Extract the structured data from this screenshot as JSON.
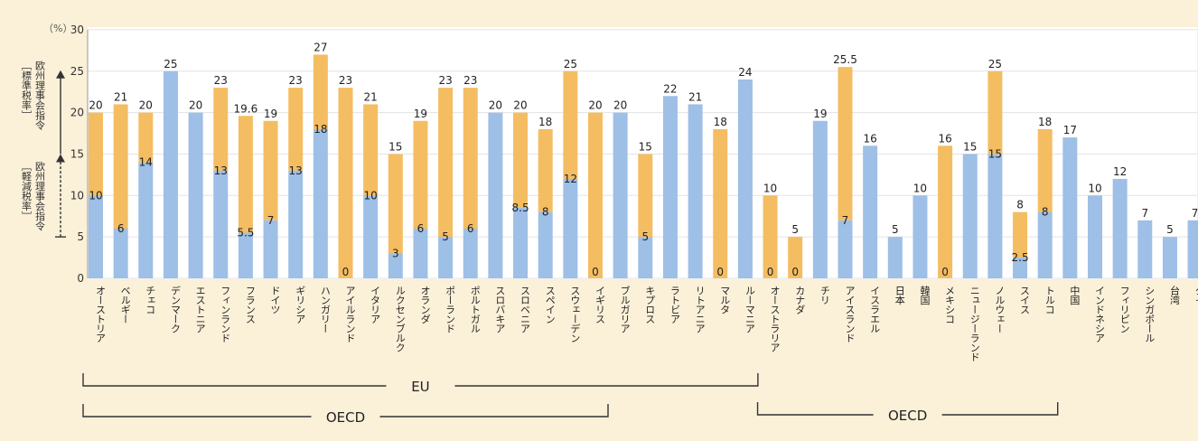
{
  "chart_data": {
    "type": "bar",
    "ylabel": "（%）",
    "ylim": [
      0,
      30
    ],
    "yticks": [
      0,
      5,
      10,
      15,
      20,
      25,
      30
    ],
    "grid": true,
    "colors": {
      "reduced": "#9ebfe6",
      "standard": "#f4bd62",
      "panel": "#ffffff",
      "background": "#fbf0d8"
    },
    "annotations": {
      "standard_rate": "欧州理事会指令",
      "standard_rate_label": "［標準税率］",
      "reduced_rate": "欧州理事会指令",
      "reduced_rate_label": "［軽減税率］"
    },
    "groups": [
      {
        "label": "EU",
        "from": "オーストリア",
        "to": "ルーマニア"
      },
      {
        "label": "OECD",
        "from": "オーストリア",
        "to": "イギリス"
      },
      {
        "label": "OECD",
        "from": "オーストラリア",
        "to": "トルコ"
      }
    ],
    "series": [
      {
        "key": "reduced"
      },
      {
        "key": "standard"
      }
    ],
    "countries": [
      {
        "name": "オーストリア",
        "standard": 20,
        "reduced": 10
      },
      {
        "name": "ベルギー",
        "standard": 21,
        "reduced": 6
      },
      {
        "name": "チェコ",
        "standard": 20,
        "reduced": 14
      },
      {
        "name": "デンマーク",
        "standard": 25,
        "reduced": null
      },
      {
        "name": "エストニア",
        "standard": 20,
        "reduced": null
      },
      {
        "name": "フィンランド",
        "standard": 23,
        "reduced": 13
      },
      {
        "name": "フランス",
        "standard": 19.6,
        "reduced": 5.5
      },
      {
        "name": "ドイツ",
        "standard": 19,
        "reduced": 7
      },
      {
        "name": "ギリシア",
        "standard": 23,
        "reduced": 13
      },
      {
        "name": "ハンガリー",
        "standard": 27,
        "reduced": 18
      },
      {
        "name": "アイルランド",
        "standard": 23,
        "reduced": 0
      },
      {
        "name": "イタリア",
        "standard": 21,
        "reduced": 10
      },
      {
        "name": "ルクセンブルク",
        "standard": 15,
        "reduced": 3
      },
      {
        "name": "オランダ",
        "standard": 19,
        "reduced": 6
      },
      {
        "name": "ポーランド",
        "standard": 23,
        "reduced": 5
      },
      {
        "name": "ポルトガル",
        "standard": 23,
        "reduced": 6
      },
      {
        "name": "スロバキア",
        "standard": 20,
        "reduced": null
      },
      {
        "name": "スロベニア",
        "standard": 20,
        "reduced": 8.5
      },
      {
        "name": "スペイン",
        "standard": 18,
        "reduced": 8
      },
      {
        "name": "スウェーデン",
        "standard": 25,
        "reduced": 12
      },
      {
        "name": "イギリス",
        "standard": 20,
        "reduced": 0
      },
      {
        "name": "ブルガリア",
        "standard": 20,
        "reduced": null
      },
      {
        "name": "キプロス",
        "standard": 15,
        "reduced": 5
      },
      {
        "name": "ラトビア",
        "standard": 22,
        "reduced": null
      },
      {
        "name": "リトアニア",
        "standard": 21,
        "reduced": null
      },
      {
        "name": "マルタ",
        "standard": 18,
        "reduced": 0
      },
      {
        "name": "ルーマニア",
        "standard": 24,
        "reduced": null
      },
      {
        "name": "オーストラリア",
        "standard": 10,
        "reduced": 0
      },
      {
        "name": "カナダ",
        "standard": 5,
        "reduced": 0
      },
      {
        "name": "チリ",
        "standard": 19,
        "reduced": null
      },
      {
        "name": "アイスランド",
        "standard": 25.5,
        "reduced": 7
      },
      {
        "name": "イスラエル",
        "standard": 16,
        "reduced": null
      },
      {
        "name": "日本",
        "standard": 5,
        "reduced": null
      },
      {
        "name": "韓国",
        "standard": 10,
        "reduced": null
      },
      {
        "name": "メキシコ",
        "standard": 16,
        "reduced": 0
      },
      {
        "name": "ニュージーランド",
        "standard": 15,
        "reduced": null
      },
      {
        "name": "ノルウェー",
        "standard": 25,
        "reduced": 15
      },
      {
        "name": "スイス",
        "standard": 8,
        "reduced": 2.5
      },
      {
        "name": "トルコ",
        "standard": 18,
        "reduced": 8
      },
      {
        "name": "中国",
        "standard": 17,
        "reduced": null
      },
      {
        "name": "インドネシア",
        "standard": 10,
        "reduced": null
      },
      {
        "name": "フィリピン",
        "standard": 12,
        "reduced": null
      },
      {
        "name": "シンガポール",
        "standard": 7,
        "reduced": null
      },
      {
        "name": "台湾",
        "standard": 5,
        "reduced": null
      },
      {
        "name": "タイ",
        "standard": 7,
        "reduced": null
      }
    ]
  }
}
